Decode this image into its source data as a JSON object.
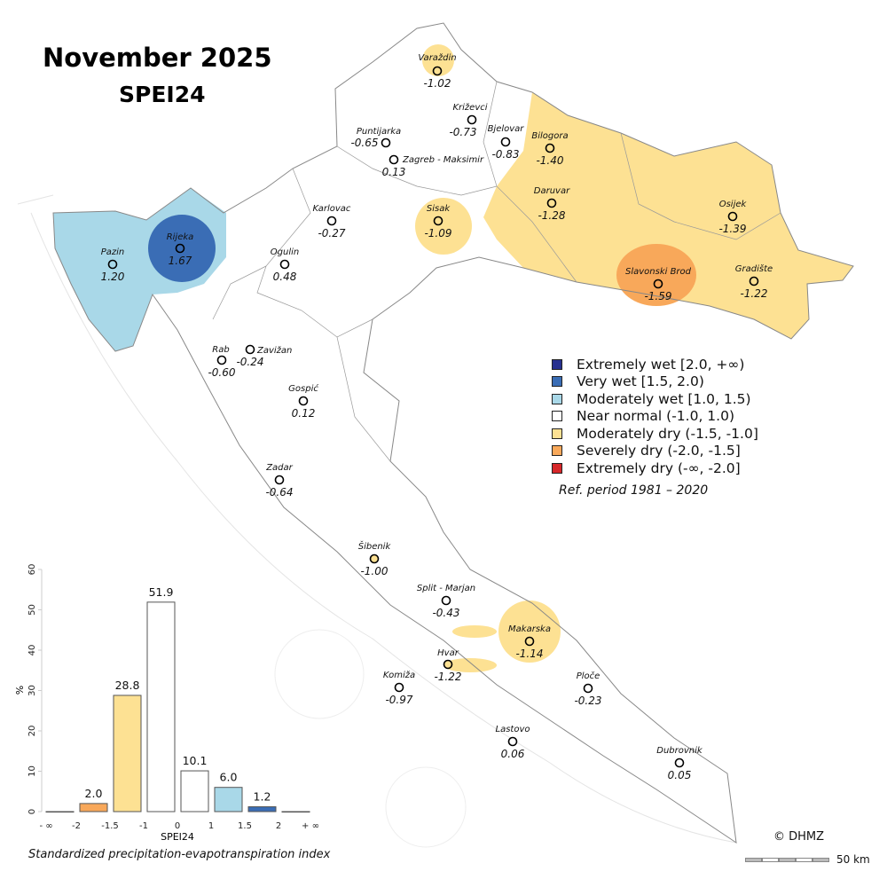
{
  "header": {
    "title": "November 2025",
    "subtitle": "SPEI24"
  },
  "colors": {
    "extremely_wet": "#27308f",
    "very_wet": "#3a6db5",
    "moderately_wet": "#a9d8e8",
    "near_normal": "#ffffff",
    "moderately_dry": "#fde193",
    "severely_dry": "#f8a85a",
    "extremely_dry": "#d7282a",
    "border": "#888888"
  },
  "legend": {
    "items": [
      {
        "label": "Extremely wet [2.0, +∞)",
        "color": "#27308f"
      },
      {
        "label": "Very wet [1.5, 2.0)",
        "color": "#3a6db5"
      },
      {
        "label": "Moderately wet [1.0, 1.5)",
        "color": "#a9d8e8"
      },
      {
        "label": "Near normal (-1.0, 1.0)",
        "color": "#ffffff"
      },
      {
        "label": "Moderately dry (-1.5, -1.0]",
        "color": "#fde193"
      },
      {
        "label": "Severely dry (-2.0, -1.5]",
        "color": "#f8a85a"
      },
      {
        "label": "Extremely dry (-∞, -2.0]",
        "color": "#d7282a"
      }
    ],
    "ref_period": "Ref. period 1981 – 2020"
  },
  "stations": [
    {
      "name": "Varaždin",
      "value": "-1.02",
      "class": "moderately_dry"
    },
    {
      "name": "Križevci",
      "value": "-0.73",
      "class": "near_normal"
    },
    {
      "name": "Puntijarka",
      "value": "-0.65",
      "class": "near_normal"
    },
    {
      "name": "Bjelovar",
      "value": "-0.83",
      "class": "near_normal"
    },
    {
      "name": "Bilogora",
      "value": "-1.40",
      "class": "moderately_dry"
    },
    {
      "name": "Zagreb - Maksimir",
      "value": "0.13",
      "class": "near_normal"
    },
    {
      "name": "Sisak",
      "value": "-1.09",
      "class": "moderately_dry"
    },
    {
      "name": "Daruvar",
      "value": "-1.28",
      "class": "moderately_dry"
    },
    {
      "name": "Osijek",
      "value": "-1.39",
      "class": "moderately_dry"
    },
    {
      "name": "Karlovac",
      "value": "-0.27",
      "class": "near_normal"
    },
    {
      "name": "Pazin",
      "value": "1.20",
      "class": "moderately_wet"
    },
    {
      "name": "Rijeka",
      "value": "1.67",
      "class": "very_wet"
    },
    {
      "name": "Ogulin",
      "value": "0.48",
      "class": "near_normal"
    },
    {
      "name": "Slavonski Brod",
      "value": "-1.59",
      "class": "severely_dry"
    },
    {
      "name": "Gradište",
      "value": "-1.22",
      "class": "moderately_dry"
    },
    {
      "name": "Rab",
      "value": "-0.60",
      "class": "near_normal"
    },
    {
      "name": "Zavižan",
      "value": "-0.24",
      "class": "near_normal"
    },
    {
      "name": "Gospić",
      "value": "0.12",
      "class": "near_normal"
    },
    {
      "name": "Zadar",
      "value": "-0.64",
      "class": "near_normal"
    },
    {
      "name": "Šibenik",
      "value": "-1.00",
      "class": "moderately_dry"
    },
    {
      "name": "Split - Marjan",
      "value": "-0.43",
      "class": "near_normal"
    },
    {
      "name": "Makarska",
      "value": "-1.14",
      "class": "moderately_dry"
    },
    {
      "name": "Hvar",
      "value": "-1.22",
      "class": "moderately_dry"
    },
    {
      "name": "Komiža",
      "value": "-0.97",
      "class": "near_normal"
    },
    {
      "name": "Ploče",
      "value": "-0.23",
      "class": "near_normal"
    },
    {
      "name": "Lastovo",
      "value": "0.06",
      "class": "near_normal"
    },
    {
      "name": "Dubrovnik",
      "value": "0.05",
      "class": "near_normal"
    }
  ],
  "chart_data": {
    "type": "bar",
    "title": "",
    "xlabel": "SPEI24",
    "ylabel": "%",
    "caption": "Standardized precipitation-evapotranspiration index",
    "ylim": [
      0,
      60
    ],
    "yticks": [
      "0",
      "10",
      "20",
      "30",
      "40",
      "50",
      "60"
    ],
    "xticks": [
      "- ∞",
      "-2",
      "-1.5",
      "-1",
      "0",
      "1",
      "1.5",
      "2",
      "+ ∞"
    ],
    "bins": [
      "(-∞,-2]",
      "(-2,-1.5]",
      "(-1.5,-1]",
      "(-1,0]",
      "(0,1)",
      "[1,1.5)",
      "[1.5,2)",
      "[2,+∞)"
    ],
    "values": [
      0,
      2.0,
      28.8,
      51.9,
      10.1,
      6.0,
      1.2,
      0
    ],
    "labels": [
      "",
      "2.0",
      "28.8",
      "51.9",
      "10.1",
      "6.0",
      "1.2",
      ""
    ],
    "colors": [
      "#d7282a",
      "#f8a85a",
      "#fde193",
      "#ffffff",
      "#ffffff",
      "#a9d8e8",
      "#3a6db5",
      "#27308f"
    ],
    "grid": false
  },
  "footer": {
    "copyright": "© DHMZ",
    "scale_label": "50 km"
  }
}
